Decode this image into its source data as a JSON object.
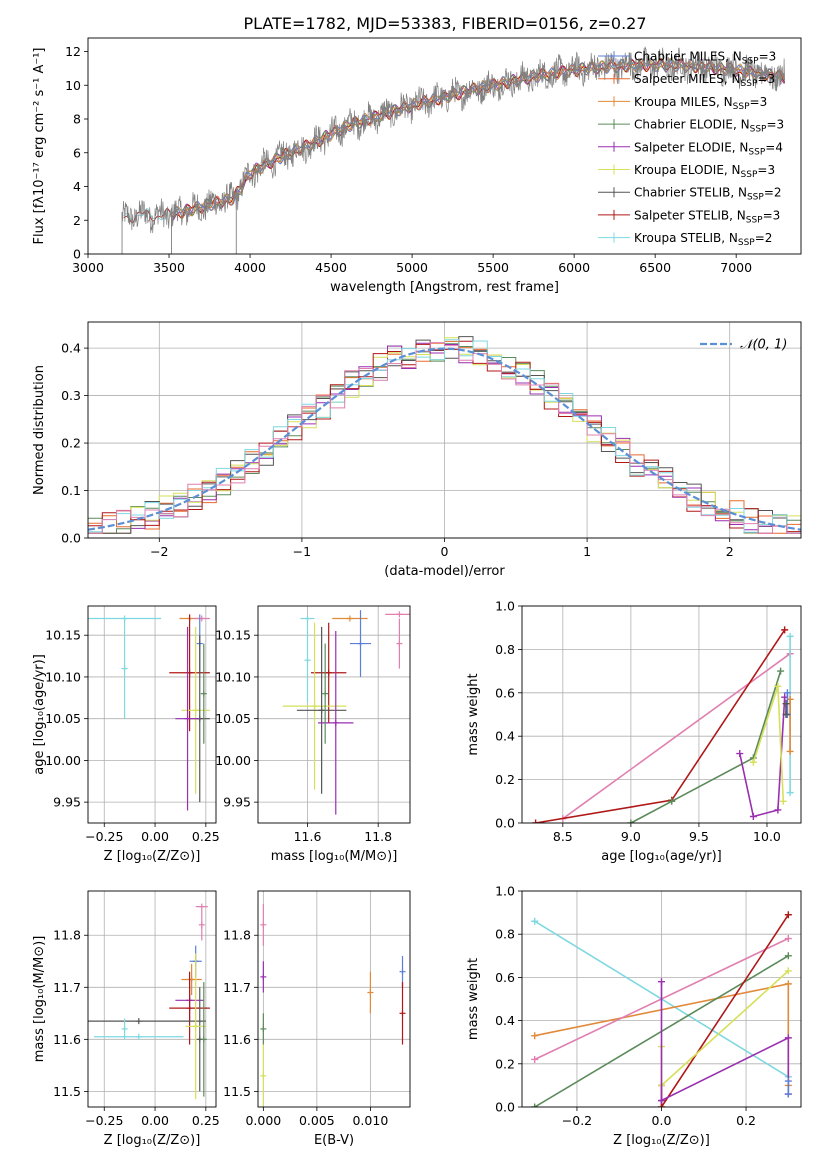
{
  "title": "PLATE=1782, MJD=53383, FIBERID=0156, z=0.27",
  "colors": {
    "chabrier_miles": "#5b7fd6",
    "salpeter_miles": "#e86a2e",
    "kroupa_miles": "#e08a3a",
    "chabrier_elodie": "#5b8a5b",
    "salpeter_elodie": "#9a2fb0",
    "kroupa_elodie": "#d6e05a",
    "chabrier_stelib": "#555555",
    "salpeter_stelib": "#b01818",
    "kroupa_stelib": "#7fd8e0",
    "pink": "#e07fb0",
    "gauss": "#5b8fd6",
    "grid": "#b0b0b0"
  },
  "chart_data": [
    {
      "id": "spectrum",
      "type": "line",
      "xlabel": "wavelength [Angstrom, rest frame]",
      "ylabel": "Flux [fλ10⁻¹⁷ erg cm⁻² s⁻¹ A⁻¹]",
      "xlim": [
        3000,
        7400
      ],
      "ylim": [
        0,
        12.8
      ],
      "xticks": [
        "3000",
        "3500",
        "4000",
        "4500",
        "5000",
        "5500",
        "6000",
        "6500",
        "7000"
      ],
      "yticks": [
        "0",
        "2",
        "4",
        "6",
        "8",
        "10",
        "12"
      ],
      "legend": [
        "Chabrier MILES, N_SSP=3",
        "Salpeter MILES, N_SSP=3",
        "Kroupa MILES, N_SSP=3",
        "Chabrier ELODIE, N_SSP=3",
        "Salpeter ELODIE, N_SSP=4",
        "Kroupa ELODIE, N_SSP=3",
        "Chabrier STELIB, N_SSP=2",
        "Salpeter STELIB, N_SSP=3",
        "Kroupa STELIB, N_SSP=2"
      ],
      "legend_placement": "right",
      "continuum": {
        "x": [
          3210,
          3300,
          3500,
          3700,
          3900,
          4000,
          4200,
          4400,
          4600,
          4800,
          5000,
          5200,
          5400,
          5600,
          5800,
          6000,
          6200,
          6400,
          6600,
          6800,
          7000,
          7200,
          7300
        ],
        "y": [
          2.1,
          2.3,
          2.3,
          2.8,
          3.3,
          4.8,
          5.8,
          6.6,
          7.6,
          8.2,
          8.8,
          9.3,
          9.8,
          10.2,
          10.6,
          10.9,
          11.1,
          11.2,
          11.2,
          11.1,
          10.9,
          10.6,
          10.5
        ]
      }
    },
    {
      "id": "residuals",
      "type": "histogram",
      "xlabel": "(data-model)/error",
      "ylabel": "Normed distribution",
      "xlim": [
        -2.5,
        2.5
      ],
      "ylim": [
        0,
        0.455
      ],
      "xticks": [
        "−2",
        "−1",
        "0",
        "1",
        "2"
      ],
      "yticks": [
        "0.0",
        "0.1",
        "0.2",
        "0.3",
        "0.4"
      ],
      "legend": [
        "𝒩(0, 1)"
      ],
      "legend_placement": "top-right"
    },
    {
      "id": "age_vs_Z",
      "type": "errorbar",
      "xlabel": "Z [log₁₀(Z/Z⊙)]",
      "ylabel": "age  [log₁₀(age/yr)]",
      "xlim": [
        -0.33,
        0.3
      ],
      "ylim": [
        9.925,
        10.185
      ],
      "xticks": [
        "−0.25",
        "0.00",
        "0.25"
      ],
      "yticks": [
        "9.95",
        "10.00",
        "10.05",
        "10.10",
        "10.15"
      ],
      "points": [
        {
          "c": "kroupa_stelib",
          "x": -0.15,
          "xe": 0.18,
          "y": 10.17,
          "ye": 0.0
        },
        {
          "c": "kroupa_stelib",
          "x": -0.15,
          "xe": 0.0,
          "y": 10.11,
          "ye": 0.06
        },
        {
          "c": "kroupa_miles",
          "x": 0.17,
          "xe": 0.05,
          "y": 10.17,
          "ye": 0.0
        },
        {
          "c": "pink",
          "x": 0.23,
          "xe": 0.04,
          "y": 10.17,
          "ye": 0.0
        },
        {
          "c": "chabrier_miles",
          "x": 0.22,
          "xe": 0.0,
          "y": 10.14,
          "ye": 0.035
        },
        {
          "c": "salpeter_stelib",
          "x": 0.17,
          "xe": 0.1,
          "y": 10.105,
          "ye": 0.07
        },
        {
          "c": "kroupa_elodie",
          "x": 0.2,
          "xe": 0.07,
          "y": 10.06,
          "ye": 0.1
        },
        {
          "c": "chabrier_stelib",
          "x": 0.22,
          "xe": 0.05,
          "y": 10.05,
          "ye": 0.1
        },
        {
          "c": "salpeter_elodie",
          "x": 0.16,
          "xe": 0.06,
          "y": 10.05,
          "ye": 0.11
        },
        {
          "c": "chabrier_elodie",
          "x": 0.24,
          "xe": 0.0,
          "y": 10.08,
          "ye": 0.06
        }
      ]
    },
    {
      "id": "age_vs_mass",
      "type": "errorbar",
      "xlabel": "mass [log₁₀(M/M⊙)]",
      "ylabel": "",
      "xlim": [
        11.46,
        11.89
      ],
      "ylim": [
        9.925,
        10.185
      ],
      "xticks": [
        "11.6",
        "11.8"
      ],
      "yticks": [
        "9.95",
        "10.00",
        "10.05",
        "10.10",
        "10.15"
      ],
      "points": [
        {
          "c": "kroupa_stelib",
          "x": 11.6,
          "xe": 0.02,
          "y": 10.17,
          "ye": 0.0
        },
        {
          "c": "kroupa_stelib",
          "x": 11.6,
          "xe": 0.0,
          "y": 10.12,
          "ye": 0.05
        },
        {
          "c": "kroupa_miles",
          "x": 11.72,
          "xe": 0.05,
          "y": 10.17,
          "ye": 0.0
        },
        {
          "c": "chabrier_miles",
          "x": 11.75,
          "xe": 0.03,
          "y": 10.14,
          "ye": 0.04
        },
        {
          "c": "pink",
          "x": 11.86,
          "xe": 0.04,
          "y": 10.175,
          "ye": 0.0
        },
        {
          "c": "pink",
          "x": 11.86,
          "xe": 0.0,
          "y": 10.14,
          "ye": 0.03
        },
        {
          "c": "salpeter_stelib",
          "x": 11.66,
          "xe": 0.05,
          "y": 10.105,
          "ye": 0.06
        },
        {
          "c": "kroupa_elodie",
          "x": 11.62,
          "xe": 0.09,
          "y": 10.065,
          "ye": 0.1
        },
        {
          "c": "chabrier_stelib",
          "x": 11.64,
          "xe": 0.07,
          "y": 10.06,
          "ye": 0.1
        },
        {
          "c": "salpeter_elodie",
          "x": 11.68,
          "xe": 0.05,
          "y": 10.045,
          "ye": 0.11
        },
        {
          "c": "chabrier_elodie",
          "x": 11.65,
          "xe": 0.0,
          "y": 10.08,
          "ye": 0.06
        }
      ]
    },
    {
      "id": "weight_vs_age",
      "type": "line",
      "xlabel": "age  [log₁₀(age/yr)]",
      "ylabel": "mass weight",
      "xlim": [
        8.2,
        10.25
      ],
      "ylim": [
        0,
        1.0
      ],
      "xticks": [
        "8.5",
        "9.0",
        "9.5",
        "10.0"
      ],
      "yticks": [
        "0.0",
        "0.2",
        "0.4",
        "0.6",
        "0.8",
        "1.0"
      ],
      "series": [
        {
          "c": "pink",
          "x": [
            8.5,
            10.17
          ],
          "y": [
            0.02,
            0.78
          ]
        },
        {
          "c": "salpeter_stelib",
          "x": [
            8.3,
            9.3,
            10.13
          ],
          "y": [
            0.0,
            0.105,
            0.89
          ]
        },
        {
          "c": "chabrier_elodie",
          "x": [
            9.0,
            9.3,
            9.9,
            10.1
          ],
          "y": [
            0.0,
            0.1,
            0.3,
            0.7
          ]
        },
        {
          "c": "salpeter_elodie",
          "x": [
            9.8,
            9.9,
            10.08,
            10.13
          ],
          "y": [
            0.32,
            0.03,
            0.06,
            0.58
          ]
        },
        {
          "c": "kroupa_elodie",
          "x": [
            9.9,
            10.08,
            10.12
          ],
          "y": [
            0.28,
            0.63,
            0.1
          ]
        },
        {
          "c": "kroupa_stelib",
          "x": [
            10.17,
            10.17
          ],
          "y": [
            0.14,
            0.86
          ]
        },
        {
          "c": "kroupa_miles",
          "x": [
            10.17,
            10.17
          ],
          "y": [
            0.33,
            0.57
          ]
        },
        {
          "c": "chabrier_miles",
          "x": [
            10.15,
            10.15
          ],
          "y": [
            0.5,
            0.6
          ]
        },
        {
          "c": "chabrier_stelib",
          "x": [
            10.14,
            10.14
          ],
          "y": [
            0.5,
            0.55
          ]
        }
      ]
    },
    {
      "id": "mass_vs_Z",
      "type": "errorbar",
      "xlabel": "Z [log₁₀(Z/Z⊙)]",
      "ylabel": "mass [log₁₀(M/M⊙)]",
      "xlim": [
        -0.33,
        0.3
      ],
      "ylim": [
        11.47,
        11.885
      ],
      "xticks": [
        "−0.25",
        "0.00",
        "0.25"
      ],
      "yticks": [
        "11.5",
        "11.6",
        "11.7",
        "11.8"
      ],
      "points": [
        {
          "c": "pink",
          "x": 0.23,
          "xe": 0.03,
          "y": 11.855,
          "ye": 0.0
        },
        {
          "c": "pink",
          "x": 0.23,
          "xe": 0.0,
          "y": 11.82,
          "ye": 0.03
        },
        {
          "c": "chabrier_miles",
          "x": 0.2,
          "xe": 0.03,
          "y": 11.75,
          "ye": 0.03
        },
        {
          "c": "kroupa_miles",
          "x": 0.18,
          "xe": 0.05,
          "y": 11.715,
          "ye": 0.03
        },
        {
          "c": "salpeter_elodie",
          "x": 0.17,
          "xe": 0.07,
          "y": 11.675,
          "ye": 0.04
        },
        {
          "c": "salpeter_stelib",
          "x": 0.17,
          "xe": 0.1,
          "y": 11.66,
          "ye": 0.07
        },
        {
          "c": "chabrier_stelib",
          "x": -0.08,
          "xe": 0.33,
          "y": 11.635,
          "ye": 0.0
        },
        {
          "c": "chabrier_stelib",
          "x": 0.22,
          "xe": 0.0,
          "y": 11.6,
          "ye": 0.1
        },
        {
          "c": "kroupa_elodie",
          "x": 0.2,
          "xe": 0.05,
          "y": 11.625,
          "ye": 0.14
        },
        {
          "c": "kroupa_stelib",
          "x": -0.08,
          "xe": 0.22,
          "y": 11.605,
          "ye": 0.0
        },
        {
          "c": "kroupa_stelib",
          "x": -0.15,
          "xe": 0.0,
          "y": 11.62,
          "ye": 0.02
        },
        {
          "c": "chabrier_elodie",
          "x": 0.24,
          "xe": 0.0,
          "y": 11.6,
          "ye": 0.11
        }
      ]
    },
    {
      "id": "mass_vs_ebv",
      "type": "errorbar",
      "xlabel": "E(B-V)",
      "ylabel": "",
      "xlim": [
        -0.0005,
        0.0137
      ],
      "ylim": [
        11.47,
        11.885
      ],
      "xticks": [
        "0.000",
        "0.005",
        "0.010"
      ],
      "yticks": [
        "11.5",
        "11.6",
        "11.7",
        "11.8"
      ],
      "points": [
        {
          "c": "pink",
          "x": 0.0,
          "xe": 0.0,
          "y": 11.82,
          "ye": 0.04
        },
        {
          "c": "salpeter_elodie",
          "x": 0.0,
          "xe": 0.0,
          "y": 11.72,
          "ye": 0.03
        },
        {
          "c": "chabrier_elodie",
          "x": 0.0,
          "xe": 0.0,
          "y": 11.62,
          "ye": 0.03
        },
        {
          "c": "kroupa_elodie",
          "x": 0.0,
          "xe": 0.0,
          "y": 11.53,
          "ye": 0.06
        },
        {
          "c": "kroupa_miles",
          "x": 0.01,
          "xe": 0.0,
          "y": 11.69,
          "ye": 0.04
        },
        {
          "c": "chabrier_miles",
          "x": 0.013,
          "xe": 0.0,
          "y": 11.73,
          "ye": 0.03
        },
        {
          "c": "salpeter_stelib",
          "x": 0.013,
          "xe": 0.0,
          "y": 11.65,
          "ye": 0.06
        }
      ]
    },
    {
      "id": "weight_vs_Z",
      "type": "line",
      "xlabel": "Z [log₁₀(Z/Z⊙)]",
      "ylabel": "mass weight",
      "xlim": [
        -0.33,
        0.33
      ],
      "ylim": [
        0,
        1.0
      ],
      "xticks": [
        "−0.2",
        "0.0",
        "0.2"
      ],
      "yticks": [
        "0.0",
        "0.2",
        "0.4",
        "0.6",
        "0.8",
        "1.0"
      ],
      "series": [
        {
          "c": "kroupa_stelib",
          "x": [
            -0.3,
            0.3
          ],
          "y": [
            0.86,
            0.14
          ]
        },
        {
          "c": "kroupa_miles",
          "x": [
            -0.3,
            0.3,
            0.3
          ],
          "y": [
            0.33,
            0.57,
            0.1
          ]
        },
        {
          "c": "pink",
          "x": [
            -0.3,
            0.3
          ],
          "y": [
            0.22,
            0.78
          ]
        },
        {
          "c": "chabrier_elodie",
          "x": [
            -0.3,
            0.3
          ],
          "y": [
            0.0,
            0.7
          ]
        },
        {
          "c": "salpeter_stelib",
          "x": [
            0.0,
            0.0,
            0.3
          ],
          "y": [
            0.1,
            0.0,
            0.89
          ]
        },
        {
          "c": "kroupa_elodie",
          "x": [
            0.0,
            0.0,
            0.3
          ],
          "y": [
            0.28,
            0.1,
            0.63
          ]
        },
        {
          "c": "salpeter_elodie",
          "x": [
            0.0,
            0.0,
            0.0,
            0.3,
            0.3
          ],
          "y": [
            0.58,
            0.03,
            0.03,
            0.32,
            0.06
          ]
        },
        {
          "c": "chabrier_miles",
          "x": [
            0.3,
            0.3
          ],
          "y": [
            0.06,
            0.12
          ]
        }
      ]
    }
  ]
}
